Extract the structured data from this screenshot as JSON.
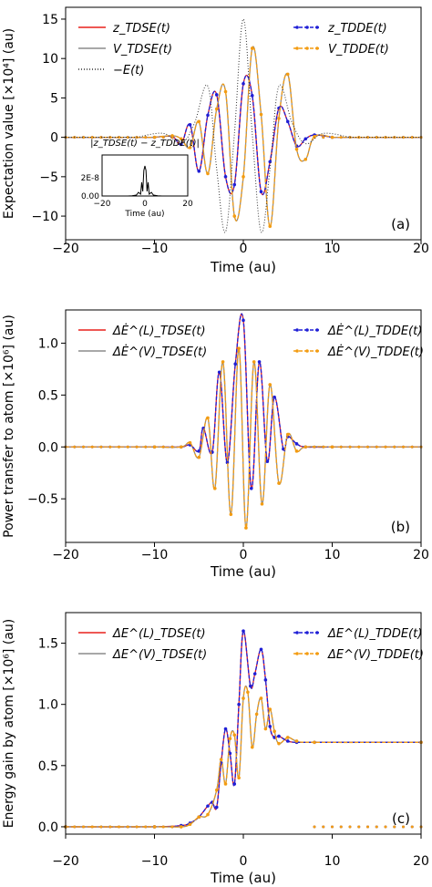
{
  "chart_data": [
    {
      "type": "line",
      "panel_label": "(a)",
      "xlabel": "Time (au)",
      "ylabel": "Expectation value [×10⁴] (au)",
      "xlim": [
        -20,
        20
      ],
      "ylim": [
        -13,
        16.5
      ],
      "xticks": [
        -20,
        -10,
        0,
        10,
        20
      ],
      "yticks": [
        -10,
        -5,
        0,
        5,
        10,
        15
      ],
      "xtick_labels": [
        "−20",
        "−10",
        "0",
        "10",
        "20"
      ],
      "ytick_labels": [
        "−10",
        "−5",
        "0",
        "5",
        "10",
        "15"
      ],
      "grid": false,
      "legend_left": "top-left",
      "legend_right": "top-right",
      "series": [
        {
          "name": "z_TDSE(t)",
          "color": "#e8211b",
          "style": "solid",
          "marker": "none",
          "x": [
            -10,
            -8,
            -7,
            -6,
            -5,
            -4,
            -3,
            -2,
            -1,
            0,
            1,
            2,
            3,
            4,
            5,
            6,
            7,
            8,
            10
          ],
          "y": [
            0,
            0.1,
            -0.9,
            1.6,
            -4.3,
            2.8,
            5.4,
            -5.0,
            -6.0,
            6.8,
            5.3,
            -6.9,
            -3.1,
            3.7,
            2.0,
            -1.1,
            -0.2,
            0.3,
            0
          ]
        },
        {
          "name": "V_TDSE(t)",
          "color": "#8c8c8c",
          "style": "solid",
          "marker": "none",
          "x": [
            -10,
            -8,
            -7,
            -6,
            -5,
            -4,
            -3,
            -2,
            -1,
            0,
            1,
            2,
            3,
            4,
            5,
            6,
            7,
            8,
            10
          ],
          "y": [
            0,
            0.2,
            -0.2,
            -1.3,
            2.0,
            -4.6,
            3.6,
            5.8,
            -10.0,
            -5.0,
            11.3,
            2.9,
            -11.3,
            2.4,
            8.0,
            -1.5,
            -2.8,
            0.1,
            0
          ]
        },
        {
          "name": "z_TDDE(t)",
          "color": "#1f1fd6",
          "style": "dashed",
          "marker": "dot",
          "x": [
            -10,
            -8,
            -7,
            -6,
            -5,
            -4,
            -3,
            -2,
            -1,
            0,
            1,
            2,
            3,
            4,
            5,
            6,
            7,
            8,
            10
          ],
          "y": [
            0,
            0.1,
            -0.9,
            1.6,
            -4.3,
            2.8,
            5.4,
            -5.0,
            -6.0,
            6.8,
            5.3,
            -6.9,
            -3.1,
            3.7,
            2.0,
            -1.1,
            -0.2,
            0.3,
            0
          ]
        },
        {
          "name": "V_TDDE(t)",
          "color": "#f39c12",
          "style": "dashed",
          "marker": "dot",
          "x": [
            -10,
            -8,
            -7,
            -6,
            -5,
            -4,
            -3,
            -2,
            -1,
            0,
            1,
            2,
            3,
            4,
            5,
            6,
            7,
            8,
            10
          ],
          "y": [
            0,
            0.2,
            -0.2,
            -1.3,
            2.0,
            -4.6,
            3.6,
            5.8,
            -10.0,
            -5.0,
            11.3,
            2.9,
            -11.3,
            2.4,
            8.0,
            -1.5,
            -2.8,
            0.1,
            0
          ]
        },
        {
          "name": "−E(t)",
          "color": "#333333",
          "style": "dotted",
          "marker": "none",
          "x": [
            -12,
            -9,
            -7,
            -5.5,
            -4,
            -3,
            -2,
            -1,
            0,
            1,
            2,
            3,
            4,
            5.5,
            7,
            9,
            12
          ],
          "y": [
            0,
            0.5,
            -0.8,
            1.8,
            6.5,
            -4.0,
            -12.0,
            0.5,
            15.0,
            0.5,
            -12.0,
            -4.0,
            6.5,
            1.8,
            -0.8,
            0.5,
            0
          ]
        }
      ],
      "inset": {
        "label": "|z_TDSE(t) − z_TDDE(t)|",
        "xlabel": "Time (au)",
        "xlim": [
          -20,
          20
        ],
        "ylim": [
          0,
          4.5e-08
        ],
        "xtick_labels": [
          "−20",
          "0",
          "20"
        ],
        "ytick_labels": [
          "0.00",
          "2E-8"
        ],
        "x": [
          -20,
          -8,
          -6,
          -4,
          -3,
          -2,
          -1.5,
          -1,
          -0.5,
          0,
          0.5,
          1,
          1.5,
          2,
          3,
          4,
          6,
          8,
          20
        ],
        "y": [
          0,
          0,
          3e-10,
          1e-09,
          4e-09,
          2e-09,
          1.5e-08,
          5e-09,
          2.8e-08,
          3.3e-08,
          2.8e-08,
          5e-09,
          1.5e-08,
          2e-09,
          4e-09,
          1e-09,
          3e-10,
          0,
          0
        ]
      }
    },
    {
      "type": "line",
      "panel_label": "(b)",
      "xlabel": "Time (au)",
      "ylabel": "Power transfer to atom [×10⁶] (au)",
      "xlim": [
        -20,
        20
      ],
      "ylim": [
        -0.92,
        1.32
      ],
      "xticks": [
        -20,
        -10,
        0,
        10,
        20
      ],
      "yticks": [
        -0.5,
        0.0,
        0.5,
        1.0
      ],
      "xtick_labels": [
        "−20",
        "−10",
        "0",
        "10",
        "20"
      ],
      "ytick_labels": [
        "−0.5",
        "0.0",
        "0.5",
        "1.0"
      ],
      "grid": false,
      "legend_left": "top-left",
      "legend_right": "top-right",
      "series": [
        {
          "name": "ΔĖ^(L)_TDSE(t)",
          "color": "#e8211b",
          "style": "solid",
          "marker": "none",
          "x": [
            -10,
            -7,
            -6,
            -5,
            -4.5,
            -3.5,
            -2.7,
            -1.8,
            -0.9,
            0,
            0.9,
            1.8,
            2.7,
            3.5,
            4.5,
            5,
            6,
            7,
            10
          ],
          "y": [
            0,
            0,
            0.02,
            -0.04,
            0.18,
            -0.05,
            0.72,
            -0.15,
            0.8,
            1.22,
            -0.4,
            0.82,
            -0.14,
            0.48,
            -0.02,
            0.1,
            0.03,
            0,
            0
          ]
        },
        {
          "name": "ΔĖ^(V)_TDSE(t)",
          "color": "#8c8c8c",
          "style": "solid",
          "marker": "none",
          "x": [
            -10,
            -7,
            -6,
            -5,
            -4,
            -3.2,
            -2.3,
            -1.4,
            -0.5,
            0.3,
            1.2,
            2.1,
            3.0,
            4.0,
            5,
            6,
            7,
            10
          ],
          "y": [
            0,
            0,
            0.04,
            -0.1,
            0.28,
            -0.4,
            0.82,
            -0.65,
            0.95,
            -0.78,
            0.82,
            -0.55,
            0.6,
            -0.35,
            0.12,
            -0.04,
            0,
            0
          ]
        },
        {
          "name": "ΔĖ^(L)_TDDE(t)",
          "color": "#1f1fd6",
          "style": "dashed",
          "marker": "dot",
          "x": [
            -10,
            -7,
            -6,
            -5,
            -4.5,
            -3.5,
            -2.7,
            -1.8,
            -0.9,
            0,
            0.9,
            1.8,
            2.7,
            3.5,
            4.5,
            5,
            6,
            7,
            10
          ],
          "y": [
            0,
            0,
            0.02,
            -0.04,
            0.18,
            -0.05,
            0.72,
            -0.15,
            0.8,
            1.22,
            -0.4,
            0.82,
            -0.14,
            0.48,
            -0.02,
            0.1,
            0.03,
            0,
            0
          ]
        },
        {
          "name": "ΔĖ^(V)_TDDE(t)",
          "color": "#f39c12",
          "style": "dashed",
          "marker": "dot",
          "x": [
            -10,
            -7,
            -6,
            -5,
            -4,
            -3.2,
            -2.3,
            -1.4,
            -0.5,
            0.3,
            1.2,
            2.1,
            3.0,
            4.0,
            5,
            6,
            7,
            10
          ],
          "y": [
            0,
            0,
            0.04,
            -0.1,
            0.28,
            -0.4,
            0.82,
            -0.65,
            0.95,
            -0.78,
            0.82,
            -0.55,
            0.6,
            -0.35,
            0.12,
            -0.04,
            0,
            0
          ]
        }
      ]
    },
    {
      "type": "line",
      "panel_label": "(c)",
      "xlabel": "Time (au)",
      "ylabel": "Energy gain by atom [×10⁶] (au)",
      "xlim": [
        -20,
        20
      ],
      "ylim": [
        -0.06,
        1.75
      ],
      "xticks": [
        -20,
        -10,
        0,
        10,
        20
      ],
      "yticks": [
        0.0,
        0.5,
        1.0,
        1.5
      ],
      "xtick_labels": [
        "−20",
        "−10",
        "0",
        "10",
        "20"
      ],
      "ytick_labels": [
        "0.0",
        "0.5",
        "1.0",
        "1.5"
      ],
      "grid": false,
      "legend_left": "top-left",
      "legend_right": "top-right",
      "series": [
        {
          "name": "ΔE^(L)_TDSE(t)",
          "color": "#e8211b",
          "style": "solid",
          "marker": "none",
          "x": [
            -20,
            -10,
            -7,
            -6,
            -5,
            -4,
            -3.5,
            -3,
            -2.5,
            -2,
            -1.5,
            -1,
            -0.5,
            0,
            0.8,
            1.3,
            2,
            2.5,
            3,
            3.5,
            4,
            5,
            6,
            8,
            20
          ],
          "y": [
            0,
            0,
            0.01,
            0.03,
            0.08,
            0.17,
            0.2,
            0.16,
            0.52,
            0.8,
            0.6,
            0.35,
            1.0,
            1.6,
            1.15,
            1.25,
            1.45,
            1.2,
            0.82,
            0.73,
            0.74,
            0.7,
            0.69,
            0.69,
            0.69
          ]
        },
        {
          "name": "ΔE^(V)_TDSE(t)",
          "color": "#8c8c8c",
          "style": "solid",
          "marker": "none",
          "x": [
            -20,
            -10,
            -7,
            -6,
            -5,
            -4,
            -3,
            -2.5,
            -2,
            -1.5,
            -1,
            -0.5,
            0,
            0.5,
            1,
            1.5,
            2,
            2.5,
            3,
            3.5,
            4,
            5,
            6,
            8,
            20
          ],
          "y": [
            0,
            0,
            0.0,
            0.02,
            0.08,
            0.1,
            0.3,
            0.55,
            0.35,
            0.72,
            0.75,
            0.4,
            1.05,
            1.1,
            0.65,
            0.92,
            1.05,
            0.8,
            0.96,
            0.78,
            0.68,
            0.73,
            0.7,
            0.69,
            0.69
          ]
        },
        {
          "name": "ΔE^(L)_TDDE(t)",
          "color": "#1f1fd6",
          "style": "dashed",
          "marker": "dot",
          "x": [
            -20,
            -10,
            -7,
            -6,
            -5,
            -4,
            -3.5,
            -3,
            -2.5,
            -2,
            -1.5,
            -1,
            -0.5,
            0,
            0.8,
            1.3,
            2,
            2.5,
            3,
            3.5,
            4,
            5,
            6,
            8,
            20
          ],
          "y": [
            0,
            0,
            0.01,
            0.03,
            0.08,
            0.17,
            0.2,
            0.16,
            0.52,
            0.8,
            0.6,
            0.35,
            1.0,
            1.6,
            1.15,
            1.25,
            1.45,
            1.2,
            0.82,
            0.73,
            0.74,
            0.7,
            0.69,
            0.69,
            0.69
          ]
        },
        {
          "name": "ΔE^(V)_TDDE(t)",
          "color": "#f39c12",
          "style": "dashed",
          "marker": "dot",
          "x": [
            -20,
            -10,
            -7,
            -6,
            -5,
            -4,
            -3,
            -2.5,
            -2,
            -1.5,
            -1,
            -0.5,
            0,
            0.5,
            1,
            1.5,
            2,
            2.5,
            3,
            3.5,
            4,
            5,
            6,
            8,
            20
          ],
          "y": [
            0,
            0,
            0.0,
            0.02,
            0.08,
            0.1,
            0.3,
            0.55,
            0.35,
            0.72,
            0.75,
            0.4,
            1.05,
            1.1,
            0.65,
            0.92,
            1.05,
            0.8,
            0.96,
            0.78,
            0.68,
            0.73,
            0.7,
            0.69,
            0.69
          ]
        }
      ]
    }
  ]
}
